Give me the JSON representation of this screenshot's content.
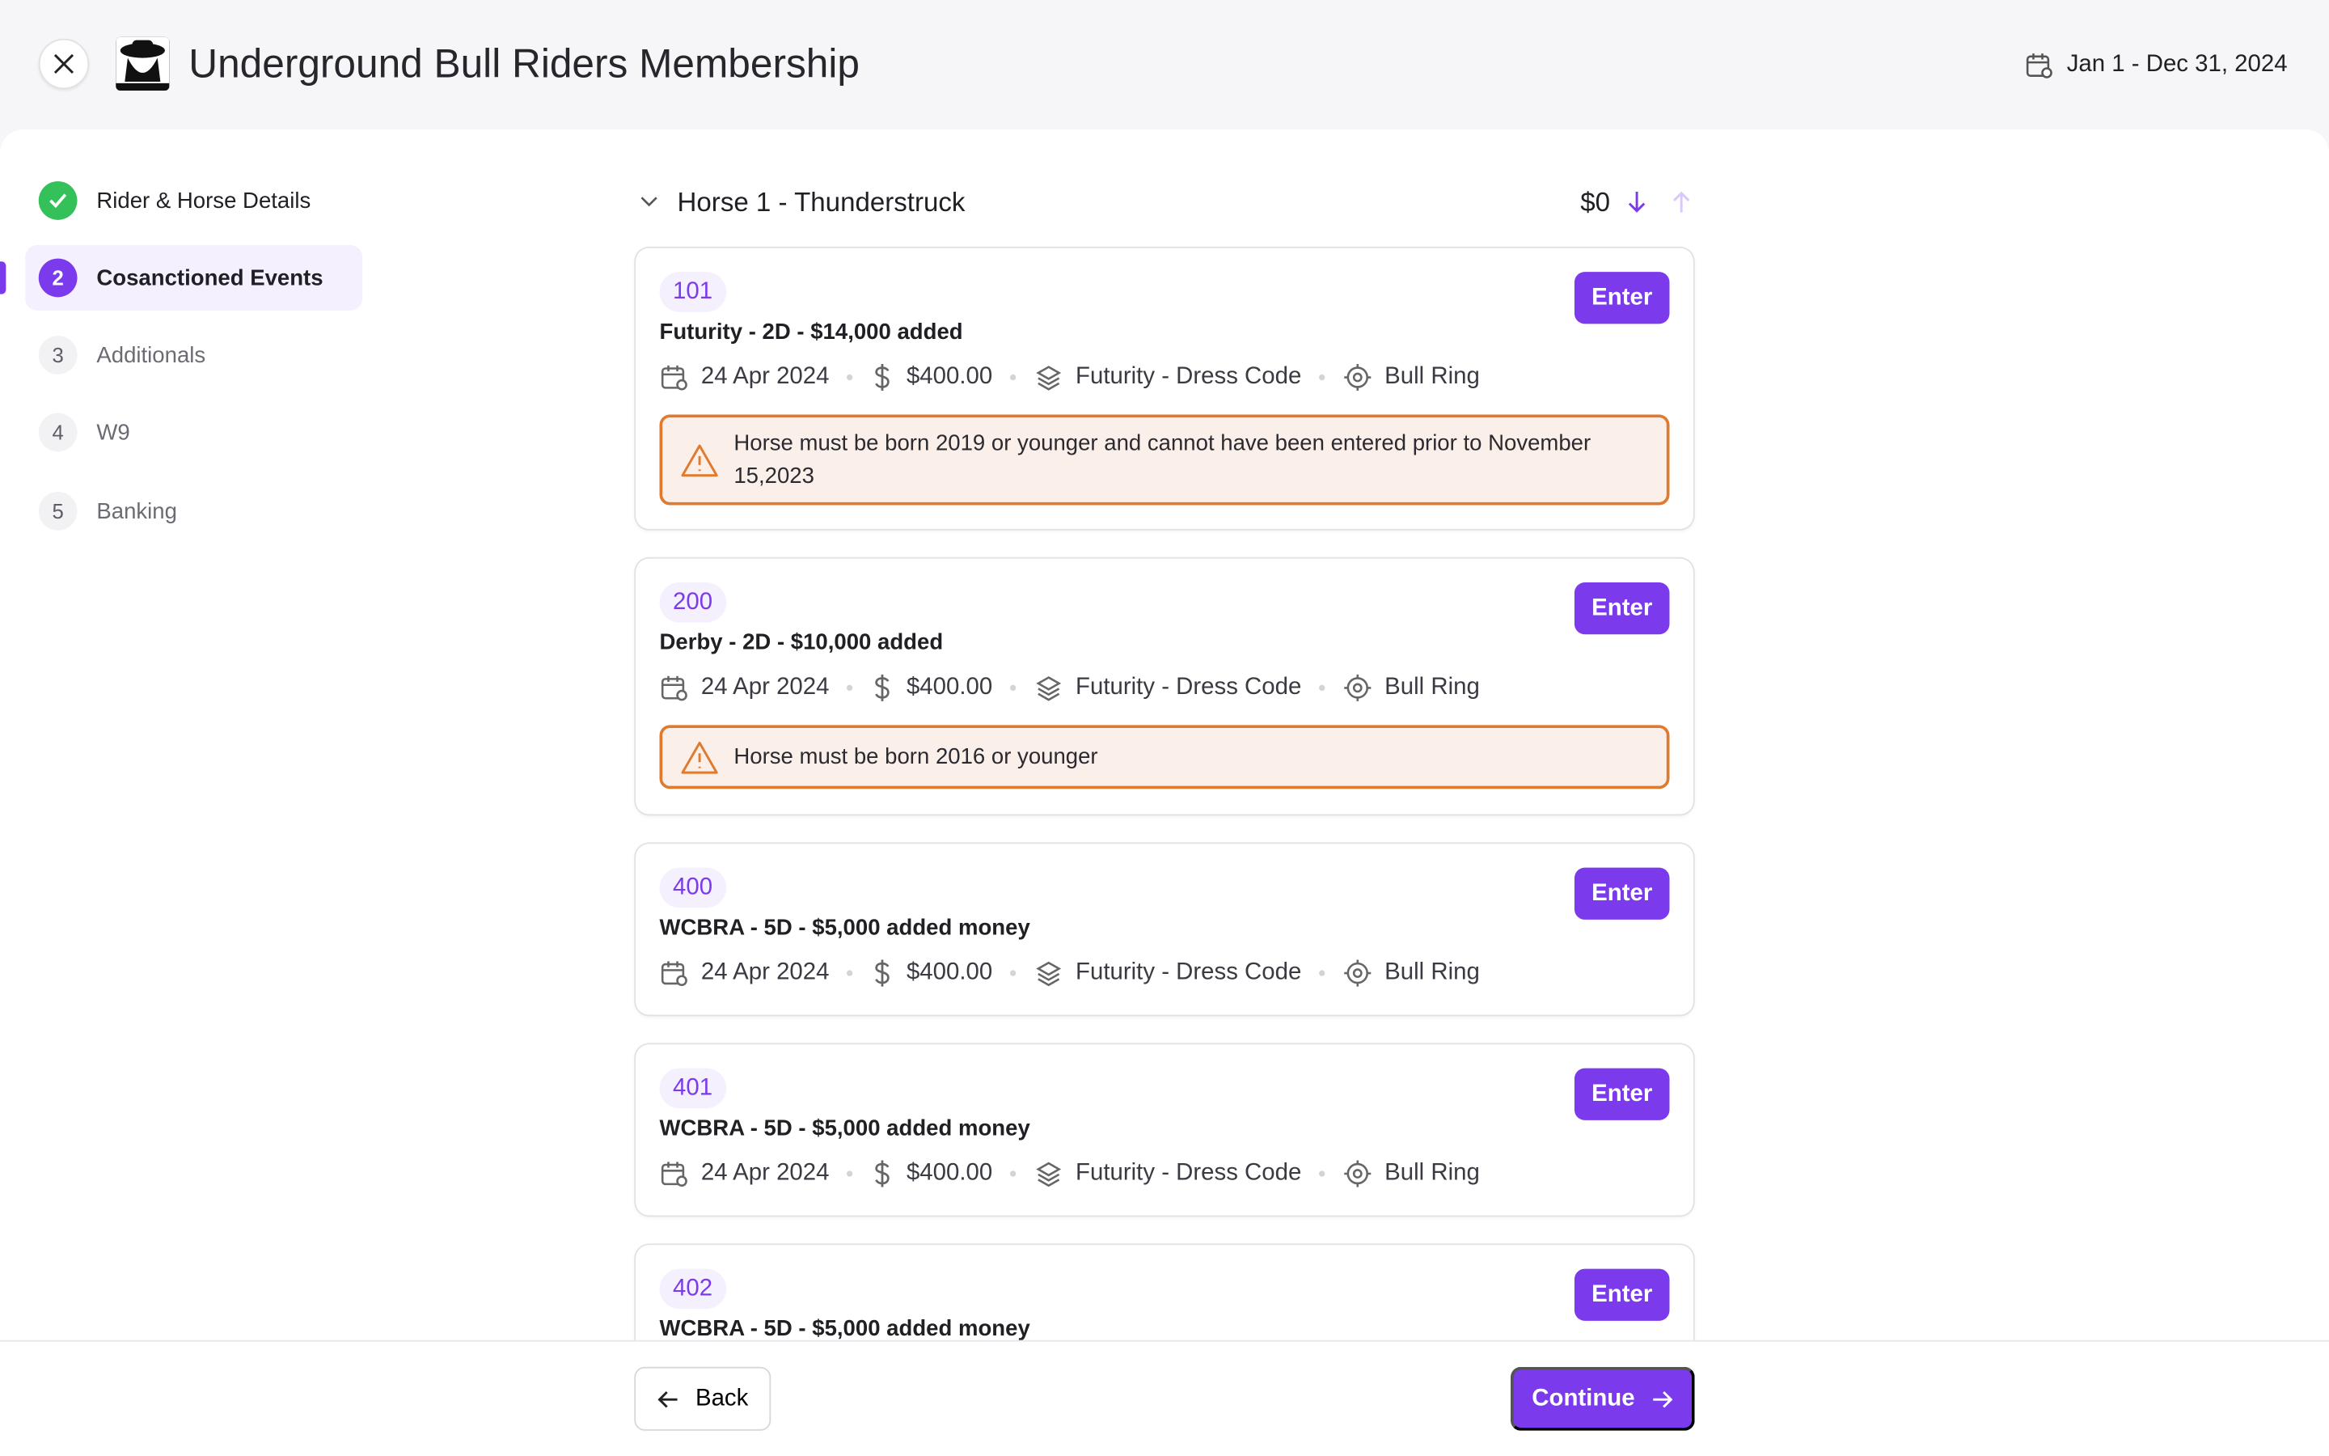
{
  "header": {
    "title": "Underground Bull Riders Membership",
    "date_range": "Jan 1 - Dec 31, 2024",
    "logo_text": "BULL RIDERS"
  },
  "steps": [
    {
      "num": "1",
      "label": "Rider & Horse Details",
      "state": "done"
    },
    {
      "num": "2",
      "label": "Cosanctioned Events",
      "state": "active"
    },
    {
      "num": "3",
      "label": "Additionals",
      "state": "pending"
    },
    {
      "num": "4",
      "label": "W9",
      "state": "pending"
    },
    {
      "num": "5",
      "label": "Banking",
      "state": "pending"
    }
  ],
  "horse": {
    "label": "Horse 1 - Thunderstruck",
    "total": "$0"
  },
  "events": [
    {
      "code": "101",
      "name": "Futurity - 2D - $14,000 added",
      "date": "24 Apr 2024",
      "fee": "$400.00",
      "category": "Futurity - Dress Code",
      "location": "Bull Ring",
      "warning": "Horse must be born 2019 or younger and cannot have been entered prior to November 15,2023",
      "enter": "Enter"
    },
    {
      "code": "200",
      "name": "Derby - 2D - $10,000 added",
      "date": "24 Apr 2024",
      "fee": "$400.00",
      "category": "Futurity - Dress Code",
      "location": "Bull Ring",
      "warning": "Horse must be born 2016 or younger",
      "enter": "Enter"
    },
    {
      "code": "400",
      "name": "WCBRA - 5D - $5,000 added money",
      "date": "24 Apr 2024",
      "fee": "$400.00",
      "category": "Futurity - Dress Code",
      "location": "Bull Ring",
      "enter": "Enter"
    },
    {
      "code": "401",
      "name": "WCBRA - 5D - $5,000 added money",
      "date": "24 Apr 2024",
      "fee": "$400.00",
      "category": "Futurity - Dress Code",
      "location": "Bull Ring",
      "enter": "Enter"
    },
    {
      "code": "402",
      "name": "WCBRA - 5D - $5,000 added money",
      "enter": "Enter"
    }
  ],
  "footer": {
    "back": "Back",
    "continue": "Continue"
  },
  "colors": {
    "accent": "#7c3aed",
    "success": "#34c15a",
    "warning_border": "#e07a2e",
    "warning_bg": "#fbefe9"
  }
}
